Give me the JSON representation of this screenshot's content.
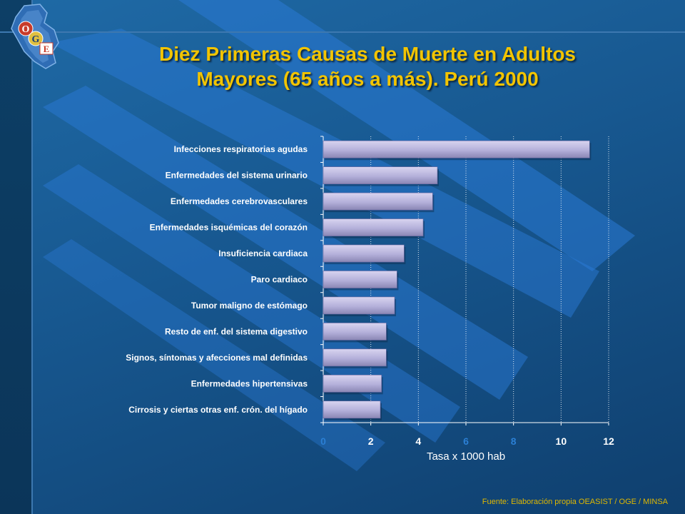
{
  "slide": {
    "title_line1": "Diez Primeras Causas de Muerte en Adultos",
    "title_line2": "Mayores (65 años a más). Perú 2000",
    "source": "Fuente: Elaboración propia OEASIST / OGE / MINSA",
    "logo_letters": [
      "O",
      "G",
      "E"
    ]
  },
  "chart_data": {
    "type": "bar",
    "orientation": "horizontal",
    "title": "",
    "xlabel": "Tasa x 1000 hab",
    "ylabel": "",
    "xlim": [
      0,
      12
    ],
    "xticks": [
      0,
      2,
      4,
      6,
      8,
      10,
      12
    ],
    "grid": true,
    "categories": [
      "Infecciones respiratorias agudas",
      "Enfermedades del sistema urinario",
      "Enfermedades cerebrovasculares",
      "Enfermedades isquémicas del corazón",
      "Insuficiencia cardiaca",
      "Paro cardiaco",
      "Tumor maligno de estómago",
      "Resto de enf. del sistema digestivo",
      "Signos, síntomas y afecciones mal definidas",
      "Enfermedades hipertensivas",
      "Cirrosis y ciertas otras enf. crón. del hígado"
    ],
    "values": [
      11.2,
      4.8,
      4.6,
      4.2,
      3.4,
      3.1,
      3.0,
      2.65,
      2.65,
      2.45,
      2.4
    ],
    "colors": {
      "bar_light": "#d8d4f0",
      "bar_dark": "#8a86b4",
      "axis": "#ffffff",
      "tick_label": "#ffffff",
      "tick_label_faint": "#2b7fd4"
    }
  }
}
